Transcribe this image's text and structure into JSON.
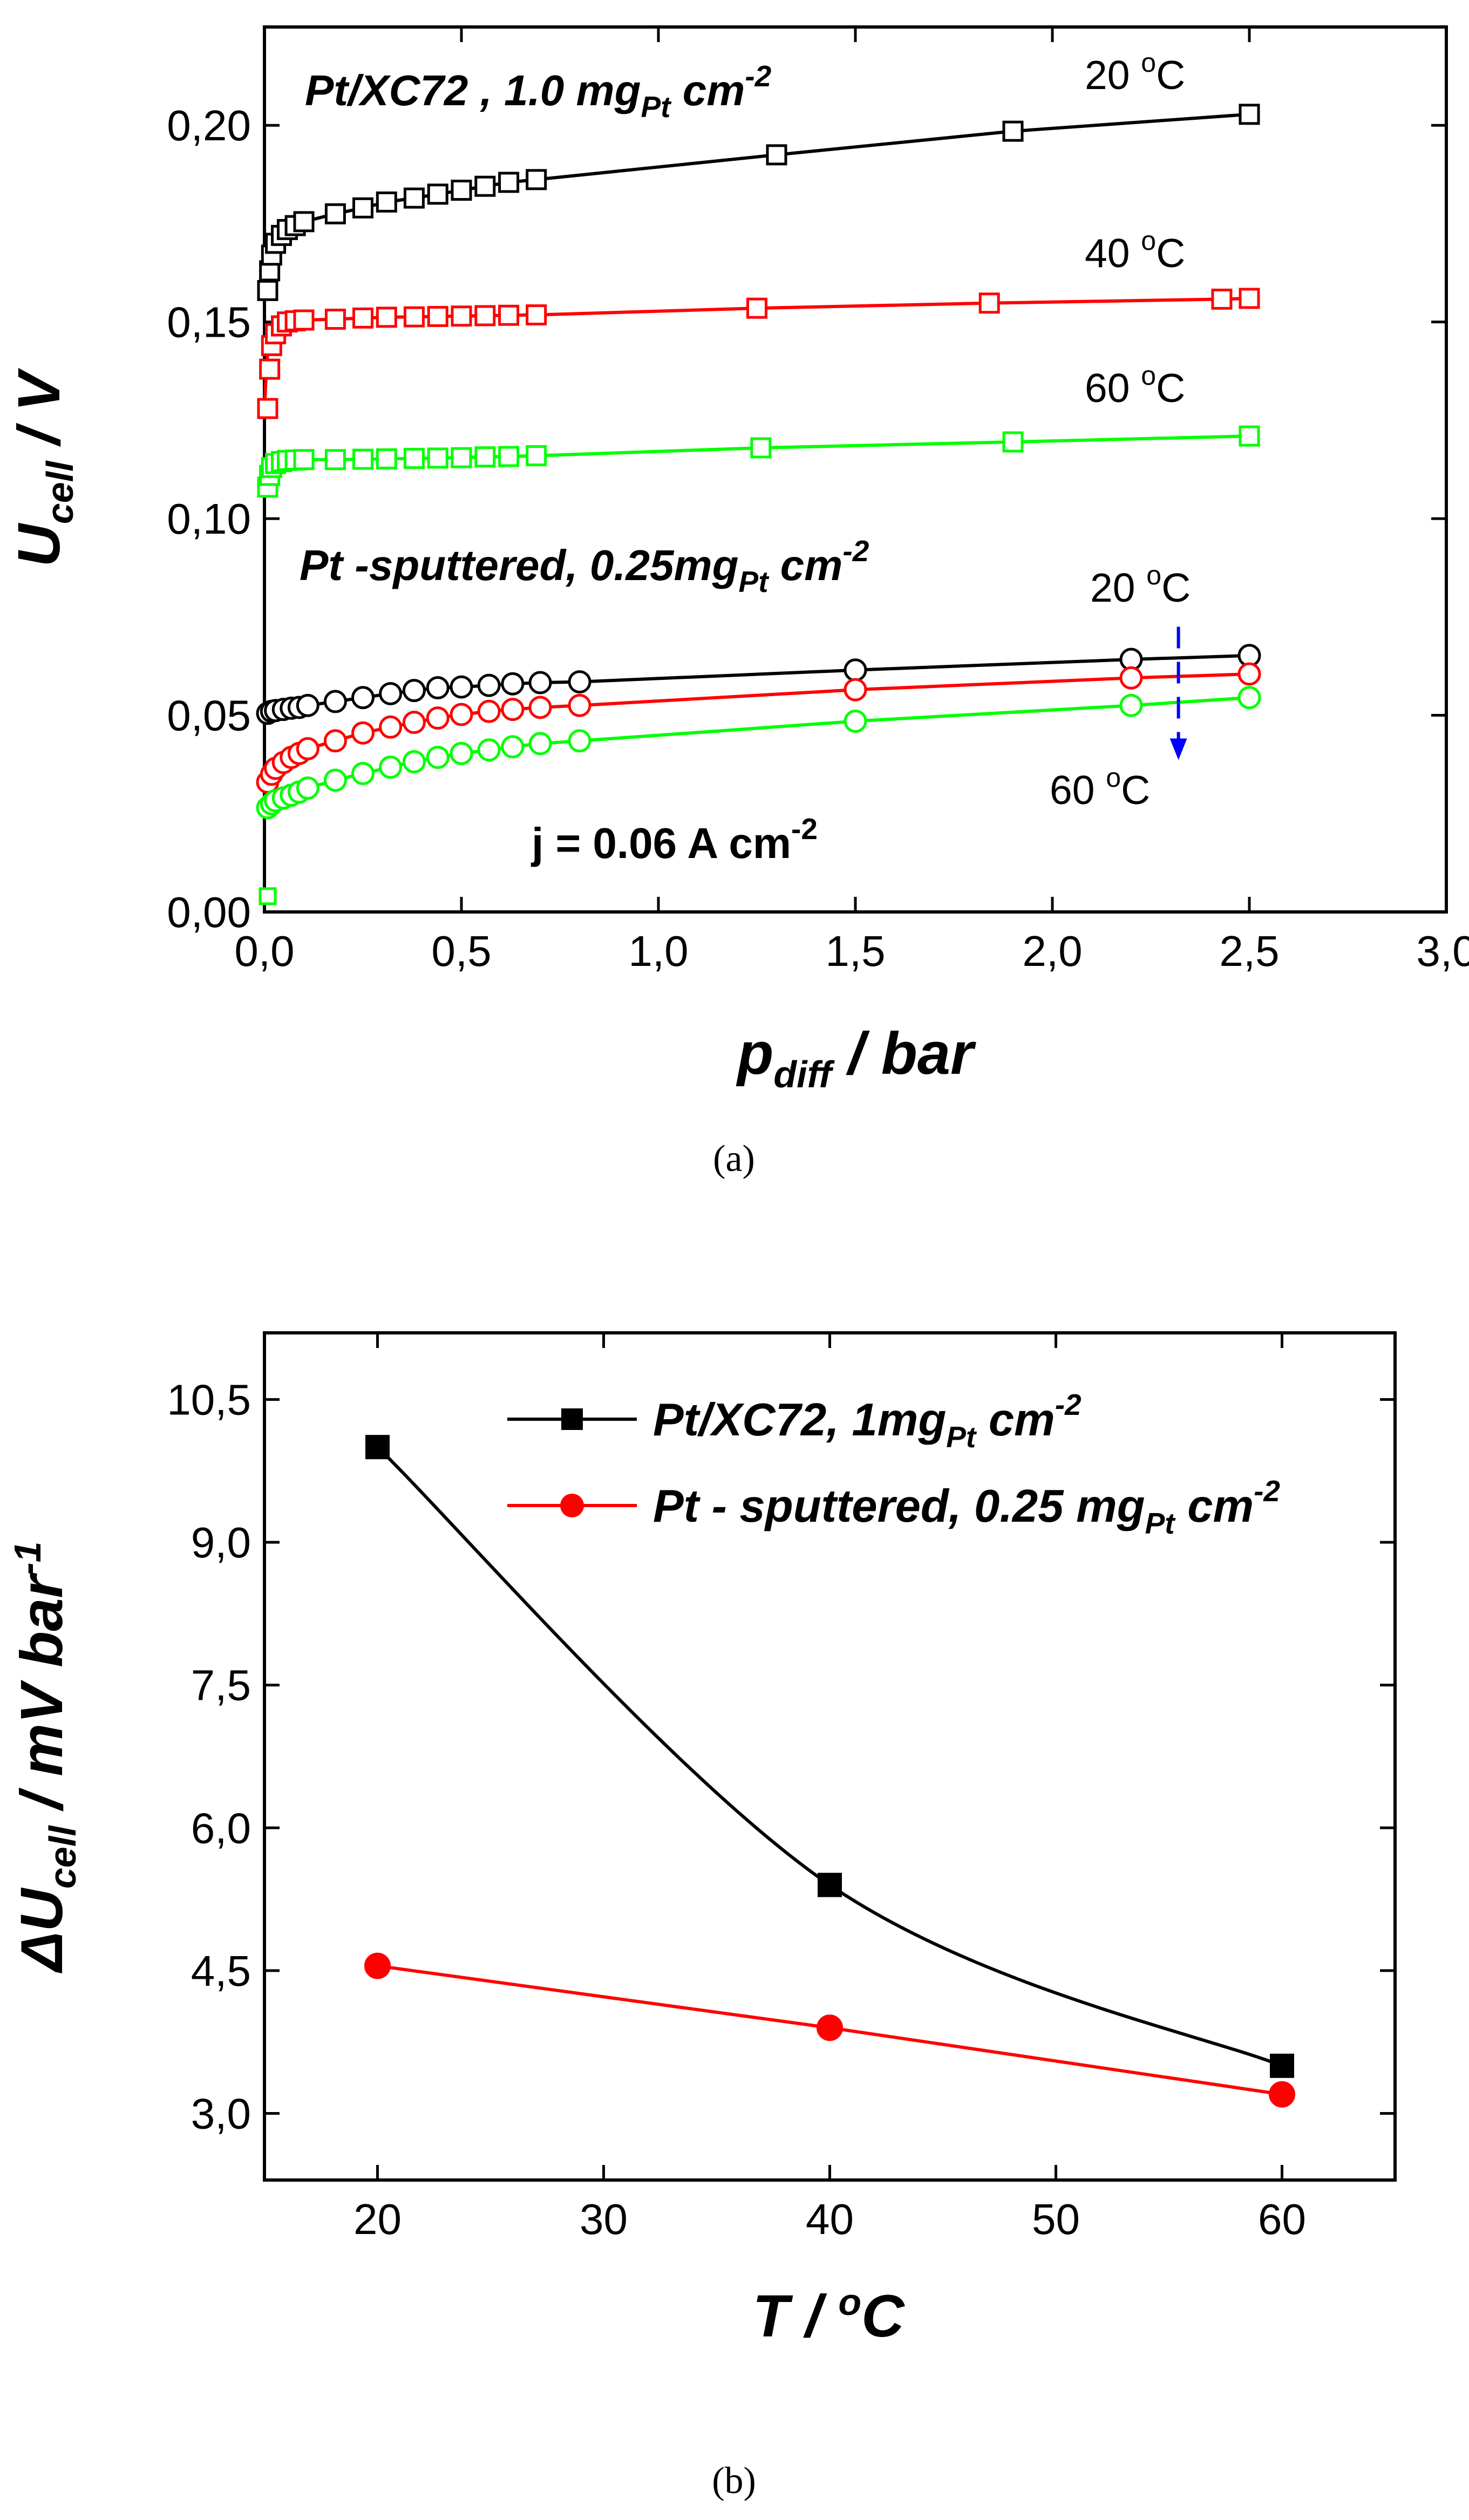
{
  "chart_data": [
    {
      "id": "a",
      "type": "scatter",
      "caption": "(a)",
      "xlabel": {
        "main": "p",
        "sub": "diff",
        "rest": " / bar"
      },
      "ylabel": {
        "main": "U",
        "sub": "cell",
        "rest": " / V"
      },
      "xlim": [
        0,
        3.0
      ],
      "ylim": [
        0,
        0.225
      ],
      "xticks": [
        0,
        0.5,
        1.0,
        1.5,
        2.0,
        2.5,
        3.0
      ],
      "xtick_labels": [
        "0,0",
        "0,5",
        "1,0",
        "1,5",
        "2,0",
        "2,5",
        "3,0"
      ],
      "yticks": [
        0,
        0.05,
        0.1,
        0.15,
        0.2
      ],
      "ytick_labels": [
        "0,00",
        "0,05",
        "0,10",
        "0,15",
        "0,20"
      ],
      "annotations": {
        "group1_pre": "Pt/XC72 ,  1.0 mg",
        "group1_sub": "Pt",
        "group1_post": " cm",
        "group1_sup": "-2",
        "group2_pre": "Pt -sputtered, 0.25mg",
        "group2_sub": "Pt",
        "group2_post": " cm",
        "group2_sup": "-2",
        "current_pre": "j = 0.06 A cm",
        "current_sup": "-2",
        "t20_top": "20 ",
        "t40": "40 ",
        "t60_top": "60 ",
        "t20_bottom": "20 ",
        "t60_bottom": "60 ",
        "deg_o": "o",
        "deg_c": "C"
      },
      "series": [
        {
          "name": "Pt/XC72 20 °C",
          "color": "#000000",
          "marker": "square",
          "x": [
            0.1,
            0.18,
            0.25,
            0.31,
            0.38,
            0.44,
            0.5,
            0.56,
            0.62,
            0.69,
            1.3,
            1.9,
            2.5
          ],
          "y": [
            0.1755,
            0.1775,
            0.179,
            0.1805,
            0.1815,
            0.1825,
            0.1835,
            0.1845,
            0.1855,
            0.1862,
            0.1925,
            0.1985,
            0.2028
          ],
          "steep_x": [
            0,
            0.005,
            0.01,
            0.02,
            0.035,
            0.05,
            0.07
          ],
          "steep_y": [
            0.158,
            0.163,
            0.167,
            0.17,
            0.172,
            0.1735,
            0.1745
          ]
        },
        {
          "name": "Pt/XC72 40 °C",
          "color": "#ff0000",
          "marker": "square",
          "x": [
            0.1,
            0.18,
            0.25,
            0.31,
            0.38,
            0.44,
            0.5,
            0.56,
            0.62,
            0.69,
            1.25,
            1.84,
            2.43,
            2.5
          ],
          "y": [
            0.1505,
            0.1507,
            0.151,
            0.1512,
            0.1513,
            0.1514,
            0.1515,
            0.1516,
            0.1517,
            0.1518,
            0.1535,
            0.1548,
            0.1558,
            0.156
          ],
          "steep_x": [
            0,
            0.005,
            0.01,
            0.02,
            0.035,
            0.05,
            0.07
          ],
          "steep_y": [
            0.128,
            0.138,
            0.144,
            0.147,
            0.149,
            0.15,
            0.1503
          ]
        },
        {
          "name": "Pt/XC72 60 °C",
          "color": "#00ff00",
          "marker": "square",
          "x": [
            0.1,
            0.18,
            0.25,
            0.31,
            0.38,
            0.44,
            0.5,
            0.56,
            0.62,
            0.69,
            1.26,
            1.9,
            2.5
          ],
          "y": [
            0.115,
            0.115,
            0.1151,
            0.1152,
            0.1153,
            0.1154,
            0.1155,
            0.1157,
            0.1158,
            0.116,
            0.118,
            0.1195,
            0.121
          ],
          "steep_x": [
            0,
            0.005,
            0.01,
            0.02,
            0.035,
            0.05,
            0.07
          ],
          "steep_y": [
            0.108,
            0.111,
            0.113,
            0.114,
            0.1145,
            0.1148,
            0.1149
          ]
        },
        {
          "name": "Pt-sputtered 20 °C",
          "color": "#000000",
          "marker": "circle",
          "x": [
            0.11,
            0.18,
            0.25,
            0.32,
            0.38,
            0.44,
            0.5,
            0.57,
            0.63,
            0.7,
            0.8,
            1.5,
            2.2,
            2.5
          ],
          "y": [
            0.0525,
            0.0535,
            0.0545,
            0.0555,
            0.0563,
            0.057,
            0.0572,
            0.0576,
            0.058,
            0.0583,
            0.0585,
            0.0615,
            0.0642,
            0.0652
          ],
          "steep_x": [
            0,
            0.01,
            0.02,
            0.04,
            0.06,
            0.08
          ],
          "steep_y": [
            0.0505,
            0.051,
            0.0512,
            0.0515,
            0.0518,
            0.052
          ]
        },
        {
          "name": "Pt-sputtered 40 °C",
          "color": "#ff0000",
          "marker": "circle",
          "x": [
            0.11,
            0.18,
            0.25,
            0.32,
            0.38,
            0.44,
            0.5,
            0.57,
            0.63,
            0.7,
            0.8,
            1.5,
            2.2,
            2.5
          ],
          "y": [
            0.0415,
            0.0435,
            0.0455,
            0.047,
            0.0482,
            0.0493,
            0.0502,
            0.051,
            0.0515,
            0.052,
            0.0525,
            0.0565,
            0.0595,
            0.0605
          ],
          "steep_x": [
            0,
            0.01,
            0.02,
            0.04,
            0.06,
            0.08
          ],
          "steep_y": [
            0.033,
            0.035,
            0.0365,
            0.038,
            0.0393,
            0.0403
          ]
        },
        {
          "name": "Pt-sputtered 60 °C",
          "color": "#00ff00",
          "marker": "circle",
          "x": [
            0.11,
            0.18,
            0.25,
            0.32,
            0.38,
            0.44,
            0.5,
            0.57,
            0.63,
            0.7,
            0.8,
            1.5,
            2.2,
            2.5
          ],
          "y": [
            0.0315,
            0.0335,
            0.0352,
            0.0368,
            0.0382,
            0.0393,
            0.0403,
            0.0412,
            0.042,
            0.0428,
            0.0435,
            0.0485,
            0.0525,
            0.0545
          ],
          "steep_x": [
            0,
            0.01,
            0.02,
            0.04,
            0.06,
            0.08
          ],
          "steep_y": [
            0.0265,
            0.0275,
            0.0283,
            0.029,
            0.0297,
            0.0305
          ]
        }
      ],
      "extra_points": [
        {
          "x": 0.0,
          "y": 0.004,
          "color": "#00ff00"
        }
      ],
      "arrow": {
        "x": 2.32,
        "y_from": 0.0725,
        "y_to": 0.04,
        "color": "#0000ff"
      }
    },
    {
      "id": "b",
      "type": "line",
      "caption": "(b)",
      "xlabel": {
        "main": "T",
        "rest": " / ",
        "sup": "o",
        "tail": "C"
      },
      "ylabel": {
        "pre": "ΔU",
        "sub": "cell",
        "mid": " / mV bar",
        "sup": "-1"
      },
      "xlim": [
        15,
        65
      ],
      "ylim": [
        2.3,
        11.2
      ],
      "xticks": [
        20,
        30,
        40,
        50,
        60
      ],
      "xtick_labels": [
        "20",
        "30",
        "40",
        "50",
        "60"
      ],
      "yticks": [
        3.0,
        4.5,
        6.0,
        7.5,
        9.0,
        10.5
      ],
      "ytick_labels": [
        "3,0",
        "4,5",
        "6,0",
        "7,5",
        "9,0",
        "10,5"
      ],
      "legend_position": "top-right",
      "series": [
        {
          "name": "Pt/XC72, 1mgPt cm-2",
          "label_pre": "Pt/XC72, 1mg",
          "label_sub": "Pt",
          "label_post": " cm",
          "label_sup": "-2",
          "color": "#000000",
          "marker": "square",
          "x": [
            20,
            40,
            60
          ],
          "y": [
            10.0,
            5.4,
            3.5
          ]
        },
        {
          "name": "Pt - sputtered, 0.25 mgPt cm-2",
          "label_pre": "Pt - sputtered, 0.25 mg",
          "label_sub": "Pt",
          "label_post": " cm",
          "label_sup": "-2",
          "color": "#ff0000",
          "marker": "circle",
          "x": [
            20,
            40,
            60
          ],
          "y": [
            4.55,
            3.9,
            3.2
          ]
        }
      ]
    }
  ]
}
